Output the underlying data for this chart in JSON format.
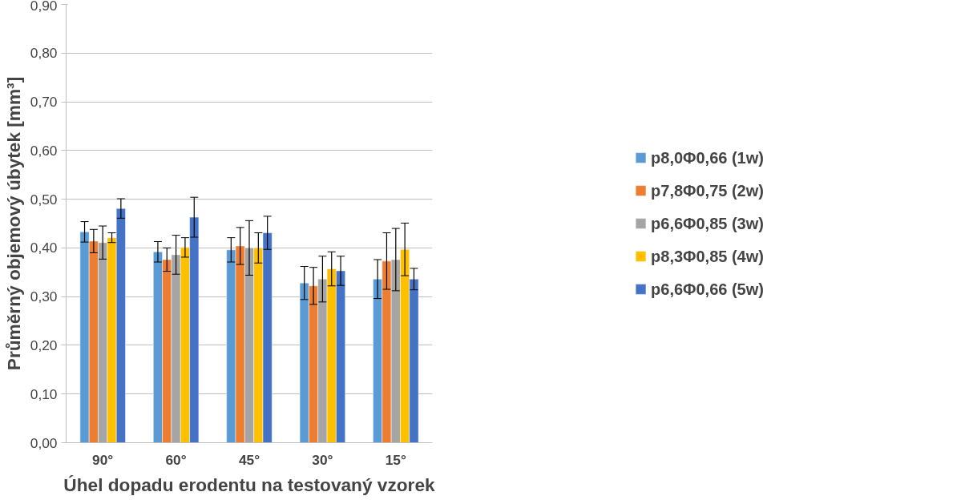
{
  "chart_data": {
    "type": "bar",
    "xlabel": "Úhel dopadu erodentu na testovaný vzorek",
    "ylabel": "Průměrný objemový úbytek [mm³]",
    "categories": [
      "90°",
      "60°",
      "45°",
      "30°",
      "15°"
    ],
    "series": [
      {
        "name": "p8,0Φ0,66 (1w)",
        "color": "#5b9bd5",
        "values": [
          0.433,
          0.392,
          0.396,
          0.328,
          0.336
        ],
        "errors": [
          0.021,
          0.021,
          0.025,
          0.034,
          0.04
        ]
      },
      {
        "name": "p7,8Φ0,75 (2w)",
        "color": "#ed7d31",
        "values": [
          0.414,
          0.376,
          0.404,
          0.322,
          0.373
        ],
        "errors": [
          0.024,
          0.024,
          0.038,
          0.038,
          0.058
        ]
      },
      {
        "name": "p6,6Φ0,85 (3w)",
        "color": "#a5a5a5",
        "values": [
          0.411,
          0.386,
          0.4,
          0.336,
          0.376
        ],
        "errors": [
          0.034,
          0.04,
          0.056,
          0.047,
          0.064
        ]
      },
      {
        "name": "p8,3Φ0,85 (4w)",
        "color": "#ffc000",
        "values": [
          0.421,
          0.401,
          0.4,
          0.357,
          0.397
        ],
        "errors": [
          0.01,
          0.02,
          0.031,
          0.035,
          0.054
        ]
      },
      {
        "name": "p6,6Φ0,66 (5w)",
        "color": "#4472c4",
        "values": [
          0.481,
          0.463,
          0.431,
          0.353,
          0.336
        ],
        "errors": [
          0.02,
          0.041,
          0.034,
          0.03,
          0.022
        ]
      }
    ],
    "ylim": [
      0,
      0.9
    ],
    "yticks": [
      {
        "value": 0,
        "label": "0,00"
      },
      {
        "value": 0.1,
        "label": "0,10"
      },
      {
        "value": 0.2,
        "label": "0,20"
      },
      {
        "value": 0.3,
        "label": "0,30"
      },
      {
        "value": 0.4,
        "label": "0,40"
      },
      {
        "value": 0.5,
        "label": "0,50"
      },
      {
        "value": 0.6,
        "label": "0,60"
      },
      {
        "value": 0.7,
        "label": "0,70"
      },
      {
        "value": 0.8,
        "label": "0,80"
      },
      {
        "value": 0.9,
        "label": "0,90"
      }
    ],
    "grid": "y",
    "legend": "right"
  }
}
